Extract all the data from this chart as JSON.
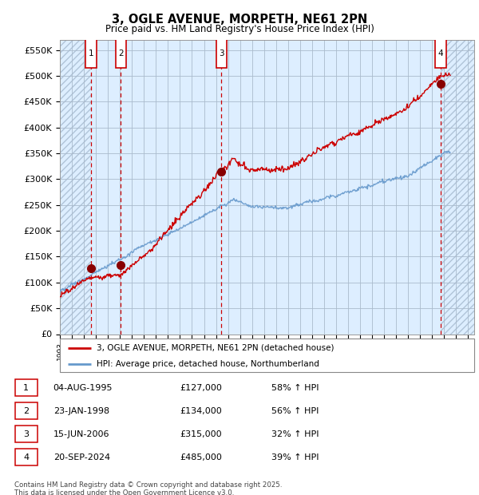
{
  "title": "3, OGLE AVENUE, MORPETH, NE61 2PN",
  "subtitle": "Price paid vs. HM Land Registry's House Price Index (HPI)",
  "ylabel_ticks": [
    "£0",
    "£50K",
    "£100K",
    "£150K",
    "£200K",
    "£250K",
    "£300K",
    "£350K",
    "£400K",
    "£450K",
    "£500K",
    "£550K"
  ],
  "ytick_values": [
    0,
    50000,
    100000,
    150000,
    200000,
    250000,
    300000,
    350000,
    400000,
    450000,
    500000,
    550000
  ],
  "ylim": [
    0,
    570000
  ],
  "xlim_start": 1993.0,
  "xlim_end": 2027.5,
  "sale_dates_num": [
    1995.585,
    1998.07,
    2006.46,
    2024.72
  ],
  "sale_prices": [
    127000,
    134000,
    315000,
    485000
  ],
  "sale_labels": [
    "1",
    "2",
    "3",
    "4"
  ],
  "sale_info": [
    {
      "label": "1",
      "date": "04-AUG-1995",
      "price": "£127,000",
      "hpi": "58% ↑ HPI"
    },
    {
      "label": "2",
      "date": "23-JAN-1998",
      "price": "£134,000",
      "hpi": "56% ↑ HPI"
    },
    {
      "label": "3",
      "date": "15-JUN-2006",
      "price": "£315,000",
      "hpi": "32% ↑ HPI"
    },
    {
      "label": "4",
      "date": "20-SEP-2024",
      "price": "£485,000",
      "hpi": "39% ↑ HPI"
    }
  ],
  "red_line_color": "#cc0000",
  "blue_line_color": "#6699cc",
  "background_plain_color": "#ddeeff",
  "background_hatch_color": "#c8d8e8",
  "grid_color": "#aabbcc",
  "vline_color": "#cc0000",
  "box_color": "#cc0000",
  "footnote": "Contains HM Land Registry data © Crown copyright and database right 2025.\nThis data is licensed under the Open Government Licence v3.0.",
  "legend_entry1": "3, OGLE AVENUE, MORPETH, NE61 2PN (detached house)",
  "legend_entry2": "HPI: Average price, detached house, Northumberland"
}
